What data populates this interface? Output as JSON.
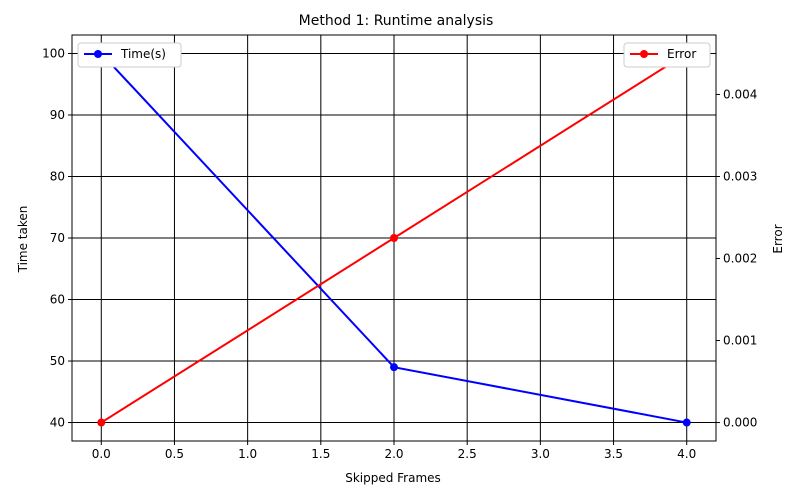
{
  "chart_data": {
    "type": "line",
    "title": "Method 1: Runtime analysis",
    "xlabel": "Skipped Frames",
    "ylabel_left": "Time taken",
    "ylabel_right": "Error",
    "x": [
      0,
      2,
      4
    ],
    "xlim": [
      -0.2,
      4.2
    ],
    "xticks": [
      "0.0",
      "0.5",
      "1.0",
      "1.5",
      "2.0",
      "2.5",
      "3.0",
      "3.5",
      "4.0"
    ],
    "ylim_left": [
      37.0,
      103.0
    ],
    "yticks_left": [
      "40",
      "50",
      "60",
      "70",
      "80",
      "90",
      "100"
    ],
    "ylim_right": [
      -0.000225,
      0.004725
    ],
    "yticks_right": [
      "0.000",
      "0.001",
      "0.002",
      "0.003",
      "0.004"
    ],
    "grid": true,
    "series": [
      {
        "name": "Time(s)",
        "axis": "left",
        "color": "#0000ff",
        "values": [
          100,
          49,
          40
        ]
      },
      {
        "name": "Error",
        "axis": "right",
        "color": "#ff0000",
        "values": [
          0.0,
          0.00225,
          0.0045
        ]
      }
    ],
    "legends": {
      "left": "top-left",
      "right": "top-right"
    }
  }
}
